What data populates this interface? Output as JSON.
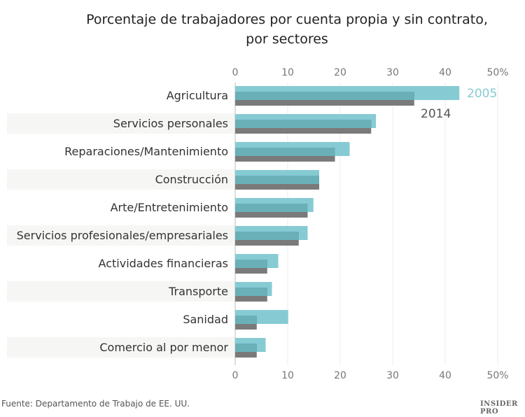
{
  "chart_data": {
    "type": "bar",
    "orientation": "horizontal",
    "title": "Porcentaje de trabajadores por cuenta propia y sin contrato, por sectores",
    "title_lines": [
      "Porcentaje de trabajadores por cuenta propia y sin contrato,",
      "por sectores"
    ],
    "categories": [
      "Agricultura",
      "Servicios personales",
      "Reparaciones/Mantenimiento",
      "Construcción",
      "Arte/Entretenimiento",
      "Servicios profesionales/empresariales",
      "Actividades financieras",
      "Transporte",
      "Sanidad",
      "Comercio al por menor"
    ],
    "series": [
      {
        "name": "2005",
        "color": "#86cbd3",
        "values": [
          42.7,
          26.8,
          21.8,
          16.0,
          14.9,
          13.8,
          8.2,
          7.0,
          10.1,
          5.8
        ]
      },
      {
        "name": "2014",
        "color": "#7a7a7a",
        "values": [
          34.1,
          25.9,
          19.0,
          16.0,
          13.8,
          12.1,
          6.1,
          6.1,
          4.1,
          4.1
        ]
      }
    ],
    "overlap_color": "#6ab0b8",
    "xlim": [
      0,
      50
    ],
    "xticks": [
      "0",
      "10",
      "20",
      "30",
      "40",
      "50%"
    ],
    "grid": true,
    "legend": "inline-labels at end of first bar"
  },
  "footer": {
    "source": "Fuente: Departamento de Trabajo de EE. UU.",
    "logo": "INSIDER PRO"
  }
}
